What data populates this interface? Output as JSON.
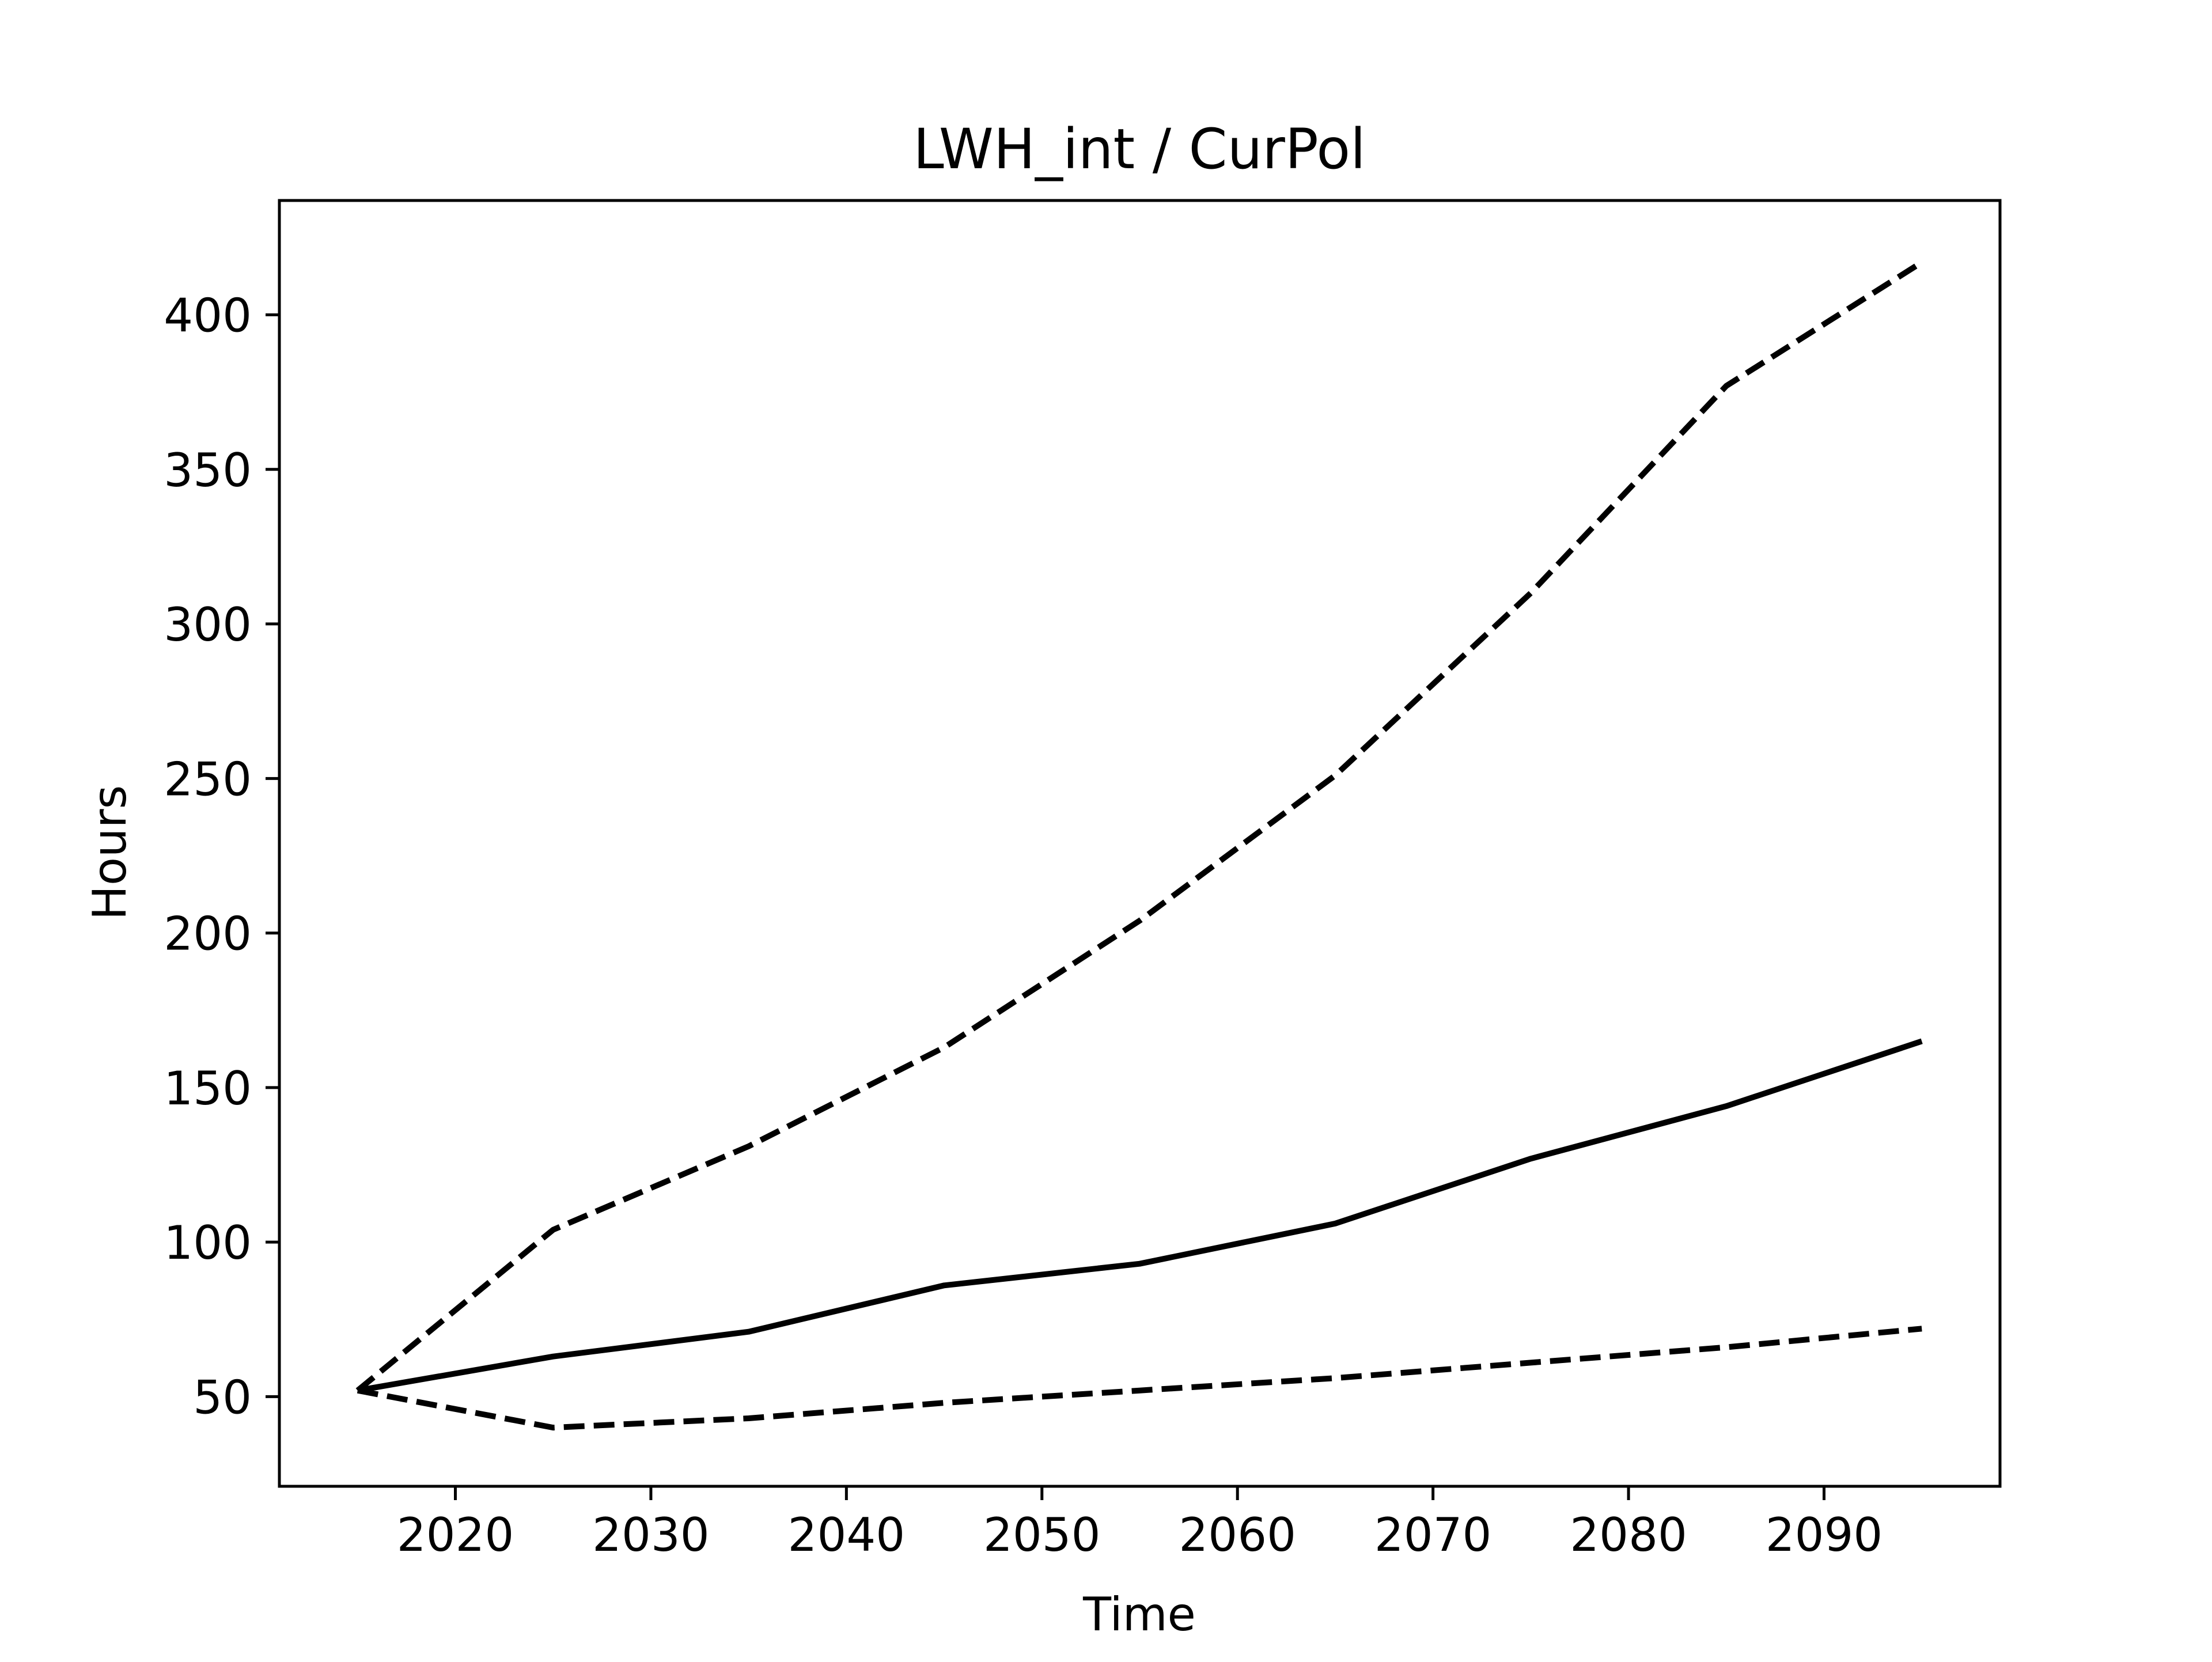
{
  "chart_data": {
    "type": "line",
    "title": "LWH_int / CurPol",
    "xlabel": "Time",
    "ylabel": "Hours",
    "xlim": [
      2011,
      2099
    ],
    "ylim": [
      21,
      437
    ],
    "xticks": [
      2020,
      2030,
      2040,
      2050,
      2060,
      2070,
      2080,
      2090
    ],
    "yticks": [
      50,
      100,
      150,
      200,
      250,
      300,
      350,
      400
    ],
    "grid": false,
    "legend": "none",
    "x": [
      2015,
      2025,
      2035,
      2045,
      2055,
      2065,
      2075,
      2085,
      2095
    ],
    "series": [
      {
        "style": "dashed",
        "color": "#000000",
        "values": [
          52,
          104,
          131,
          163,
          204,
          251,
          310,
          377,
          417
        ]
      },
      {
        "style": "solid",
        "color": "#000000",
        "values": [
          52,
          63,
          71,
          86,
          93,
          106,
          127,
          144,
          165
        ]
      },
      {
        "style": "dashed",
        "color": "#000000",
        "values": [
          52,
          40,
          43,
          48,
          52,
          56,
          61,
          66,
          72
        ]
      }
    ]
  }
}
